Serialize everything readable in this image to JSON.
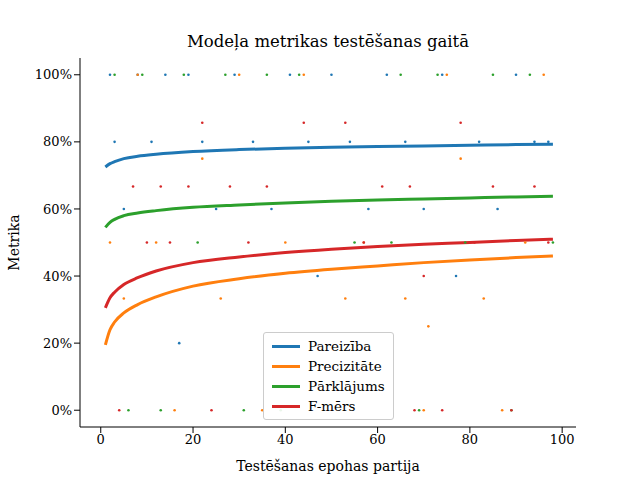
{
  "chart_data": {
    "type": "line",
    "title": "Modeļa metrikas testēšanas gaitā",
    "x_label": "Testēšanas epohas partija",
    "y_label": "Metrika",
    "xlim": [
      -4.5,
      103
    ],
    "xticks": [
      0,
      20,
      40,
      60,
      80,
      100
    ],
    "ylim": [
      -5,
      105
    ],
    "yticks": [
      {
        "value": 0,
        "label": "0%"
      },
      {
        "value": 20,
        "label": "20%"
      },
      {
        "value": 40,
        "label": "40%"
      },
      {
        "value": 60,
        "label": "60%"
      },
      {
        "value": 80,
        "label": "80%"
      },
      {
        "value": 100,
        "label": "100%"
      }
    ],
    "grid": true,
    "legend": "lower center",
    "x": [
      1,
      2,
      3,
      5,
      8,
      12,
      20,
      30,
      40,
      50,
      60,
      70,
      80,
      90,
      98
    ],
    "series": [
      {
        "name": "Pareizība",
        "color": "#1f77b4",
        "values": [
          72.5,
          73.5,
          74.1,
          75,
          75.7,
          76.3,
          77.1,
          77.7,
          78.1,
          78.4,
          78.6,
          78.8,
          79,
          79.2,
          79.3
        ],
        "points_x": [
          2,
          3,
          5,
          8,
          11,
          14,
          17,
          19,
          22,
          25,
          29,
          33,
          37,
          41,
          45,
          47,
          50,
          54,
          58,
          62,
          66,
          70,
          74,
          77,
          82,
          86,
          90,
          94,
          97
        ],
        "points_values": [
          100,
          80,
          60,
          100,
          80,
          100,
          20,
          100,
          80,
          60,
          100,
          80,
          60,
          100,
          80,
          40,
          100,
          80,
          60,
          100,
          80,
          60,
          100,
          40,
          80,
          60,
          100,
          80,
          80
        ]
      },
      {
        "name": "Precizitāte",
        "color": "#ff7f0e",
        "values": [
          19.5,
          24,
          26.3,
          29,
          31.5,
          33.8,
          37,
          39.2,
          40.8,
          42,
          43,
          44,
          44.8,
          45.5,
          46
        ],
        "points_x": [
          2,
          5,
          8,
          12,
          16,
          22,
          26,
          30,
          35,
          40,
          44,
          53,
          57,
          66,
          70,
          71,
          75,
          78,
          83,
          87,
          92,
          96
        ],
        "points_values": [
          50,
          33.3,
          100,
          50,
          0,
          75,
          33.3,
          100,
          0,
          50,
          100,
          33.3,
          50,
          33.3,
          0,
          25,
          100,
          75,
          33.3,
          0,
          50,
          100
        ]
      },
      {
        "name": "Pārklājums",
        "color": "#2ca02c",
        "values": [
          54.5,
          56,
          56.9,
          58,
          58.8,
          59.5,
          60.5,
          61.2,
          61.8,
          62.3,
          62.7,
          63,
          63.3,
          63.6,
          63.8
        ],
        "points_x": [
          3,
          6,
          9,
          13,
          18,
          21,
          27,
          31,
          36,
          39,
          43,
          55,
          63,
          65,
          69,
          73,
          79,
          85,
          89,
          93,
          98
        ],
        "points_values": [
          100,
          0,
          100,
          0,
          100,
          50,
          100,
          0,
          100,
          0,
          100,
          50,
          50,
          100,
          0,
          100,
          50,
          100,
          0,
          100,
          50
        ]
      },
      {
        "name": "F-mērs",
        "color": "#d62728",
        "values": [
          30.5,
          33.5,
          35.2,
          37.5,
          39.5,
          41.5,
          44,
          45.7,
          47,
          48,
          48.8,
          49.5,
          50,
          50.6,
          51
        ],
        "points_x": [
          4,
          7,
          10,
          13,
          15,
          19,
          22,
          24,
          28,
          32,
          36,
          44,
          53,
          57,
          61,
          68,
          67,
          70,
          74,
          78,
          81,
          85,
          89,
          94,
          97
        ],
        "points_values": [
          0,
          66.7,
          50,
          66.7,
          50,
          66.7,
          85.7,
          0,
          66.7,
          50,
          66.7,
          85.7,
          85.7,
          50,
          66.7,
          0,
          66.7,
          40,
          0,
          85.7,
          50,
          66.7,
          0,
          66.7,
          50
        ]
      }
    ]
  }
}
